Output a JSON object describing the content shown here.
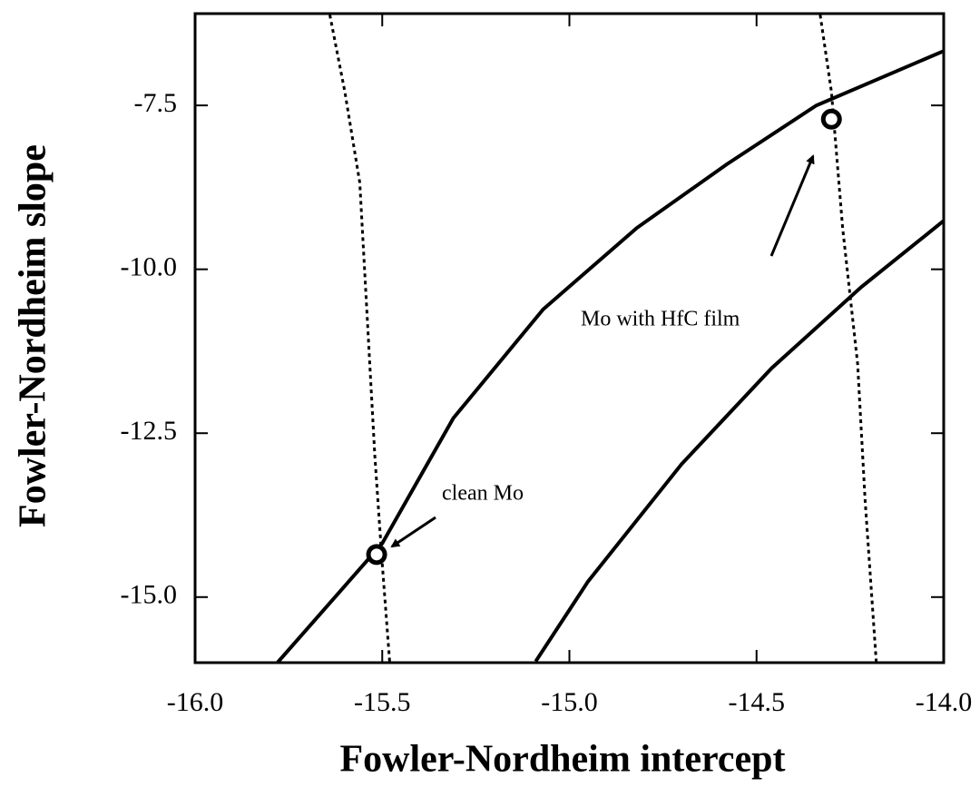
{
  "chart_data": {
    "type": "line",
    "xlabel": "Fowler-Nordheim intercept",
    "ylabel": "Fowler-Nordheim slope",
    "xlim": [
      -16.0,
      -14.0
    ],
    "ylim": [
      -16.0,
      -6.1
    ],
    "xticks": [
      {
        "value": -16,
        "label": "-16.0"
      },
      -15.5,
      {
        "value": -15,
        "label": "-15.0"
      },
      -14.5,
      {
        "value": -14,
        "label": "-14.0"
      }
    ],
    "yticks": [
      -7.5,
      {
        "value": -10,
        "label": "-10.0"
      },
      -12.5,
      {
        "value": -15,
        "label": "-15.0"
      }
    ],
    "series": [
      {
        "style": "solid",
        "color": "#000000",
        "x": [
          -15.78,
          -15.5,
          -15.31,
          -15.07,
          -14.82,
          -14.58,
          -14.34,
          -14.0
        ],
        "values": [
          -16.0,
          -14.18,
          -12.27,
          -10.61,
          -9.37,
          -8.4,
          -7.5,
          -6.67
        ]
      },
      {
        "style": "solid",
        "color": "#000000",
        "x": [
          -15.09,
          -14.95,
          -14.7,
          -14.46,
          -14.22,
          -14.0
        ],
        "values": [
          -15.98,
          -14.76,
          -12.97,
          -11.51,
          -10.27,
          -9.26
        ]
      },
      {
        "style": "dotted",
        "color": "#000000",
        "x": [
          -15.64,
          -15.6,
          -15.56,
          -15.54,
          -15.52,
          -15.5,
          -15.48
        ],
        "values": [
          -6.12,
          -7.29,
          -8.68,
          -10.75,
          -12.83,
          -14.49,
          -16.0
        ]
      },
      {
        "style": "dotted",
        "color": "#000000",
        "x": [
          -14.33,
          -14.3,
          -14.27,
          -14.23,
          -14.21,
          -14.18
        ],
        "values": [
          -6.12,
          -7.29,
          -9.37,
          -11.44,
          -13.52,
          -16.0
        ]
      },
      {
        "style": "circle",
        "color": "#000000",
        "x": [
          -15.515,
          -14.3
        ],
        "values": [
          -14.35,
          -7.71
        ]
      }
    ],
    "annotations": [
      {
        "text": "clean Mo"
      },
      {
        "text": "Mo with HfC film"
      }
    ]
  }
}
